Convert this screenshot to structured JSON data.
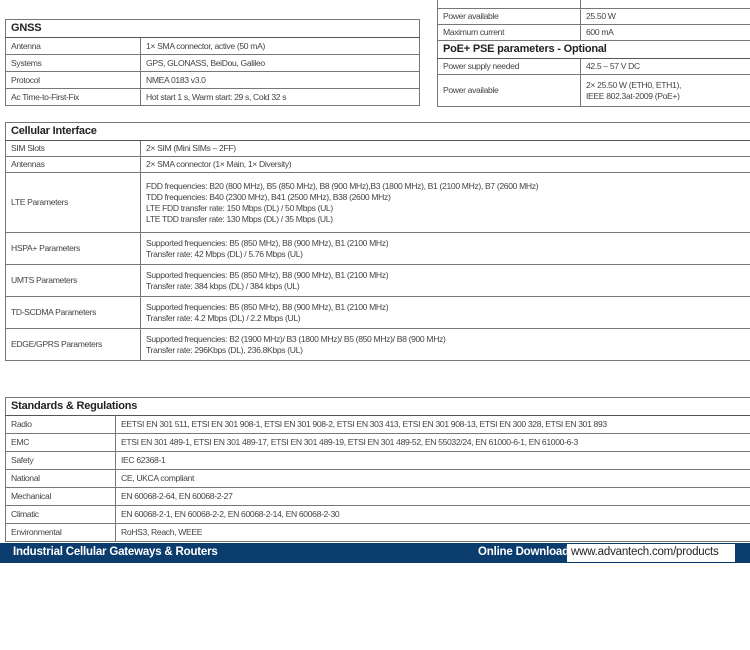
{
  "power_table": {
    "rows": [
      {
        "label": "",
        "value": ""
      },
      {
        "label": "Power available",
        "value": "25.50 W"
      },
      {
        "label": "Maximum current",
        "value": "600 mA"
      }
    ],
    "poe_title": "PoE+ PSE parameters - Optional",
    "poe_rows": [
      {
        "label": "Power supply needed",
        "value": "42.5 – 57 V DC"
      },
      {
        "label": "Power available",
        "value": [
          "2× 25.50 W (ETH0, ETH1),",
          "IEEE 802.3at-2009 (PoE+)"
        ]
      }
    ]
  },
  "gnss": {
    "title": "GNSS",
    "rows": [
      {
        "label": "Antenna",
        "value": "1× SMA connector, active (50 mA)"
      },
      {
        "label": "Systems",
        "value": "GPS, GLONASS, BeiDou, Galileo"
      },
      {
        "label": "Protocol",
        "value": "NMEA 0183 v3.0"
      },
      {
        "label": "Ac Time-to-First-Fix",
        "value": "Hot start 1 s, Warm start: 29 s, Cold 32 s"
      }
    ]
  },
  "cellular": {
    "title": "Cellular Interface",
    "rows": [
      {
        "label": "SIM Slots",
        "lines": [
          "2× SIM (Mini SIMs – 2FF)"
        ]
      },
      {
        "label": "Antennas",
        "lines": [
          "2× SMA connector (1× Main, 1× Diversity)"
        ]
      },
      {
        "label": "LTE Parameters",
        "lines": [
          "FDD frequencies: B20 (800 MHz), B5 (850 MHz), B8 (900 MHz),B3 (1800 MHz), B1 (2100 MHz), B7 (2600 MHz)",
          "TDD frequencies: B40 (2300 MHz), B41 (2500 MHz), B38 (2600 MHz)",
          "LTE FDD transfer rate: 150 Mbps (DL) / 50 Mbps (UL)",
          "LTE TDD transfer rate: 130 Mbps (DL) / 35 Mbps (UL)"
        ]
      },
      {
        "label": "HSPA+ Parameters",
        "lines": [
          "Supported frequencies: B5 (850 MHz), B8 (900 MHz), B1 (2100 MHz)",
          "Transfer rate: 42 Mbps (DL) / 5.76 Mbps (UL)"
        ]
      },
      {
        "label": "UMTS Parameters",
        "lines": [
          "Supported frequencies: B5 (850 MHz), B8 (900 MHz), B1 (2100 MHz)",
          "Transfer rate: 384 kbps (DL) / 384 kbps (UL)"
        ]
      },
      {
        "label": "TD-SCDMA Parameters",
        "lines": [
          "Supported frequencies: B5 (850 MHz), B8 (900 MHz), B1 (2100 MHz)",
          "Transfer rate: 4.2 Mbps (DL) / 2.2 Mbps (UL)"
        ]
      },
      {
        "label": "EDGE/GPRS Parameters",
        "lines": [
          "Supported frequencies: B2 (1900 MHz)/ B3 (1800 MHz)/ B5 (850 MHz)/ B8 (900 MHz)",
          "Transfer rate: 296Kbps (DL), 236.8Kbps (UL)"
        ]
      }
    ]
  },
  "standards": {
    "title": "Standards & Regulations",
    "rows": [
      {
        "label": "Radio",
        "value": "EETSI EN 301 511, ETSI EN 301 908-1, ETSI EN 301 908-2, ETSI EN 303 413, ETSI EN 301 908-13, ETSI EN 300 328, ETSI EN 301 893"
      },
      {
        "label": "EMC",
        "value": "ETSI EN 301 489-1, ETSI EN 301 489-17, ETSI EN 301 489-19, ETSI EN 301 489-52, EN 55032/24, EN 61000-6-1, EN 61000-6-3"
      },
      {
        "label": "Safety",
        "value": "IEC 62368-1"
      },
      {
        "label": "National",
        "value": "CE, UKCA compliant"
      },
      {
        "label": "Mechanical",
        "value": "EN 60068-2-64, EN 60068-2-27"
      },
      {
        "label": "Climatic",
        "value": "EN 60068-2-1, EN 60068-2-2, EN 60068-2-14, EN 60068-2-30"
      },
      {
        "label": "Environmental",
        "value": "RoHS3, Reach, WEEE"
      }
    ]
  },
  "footer": {
    "left": "Industrial Cellular Gateways & Routers",
    "download_label": "Online Download",
    "url": "www.advantech.com/products",
    "bar_color": "#0b3c6e"
  }
}
